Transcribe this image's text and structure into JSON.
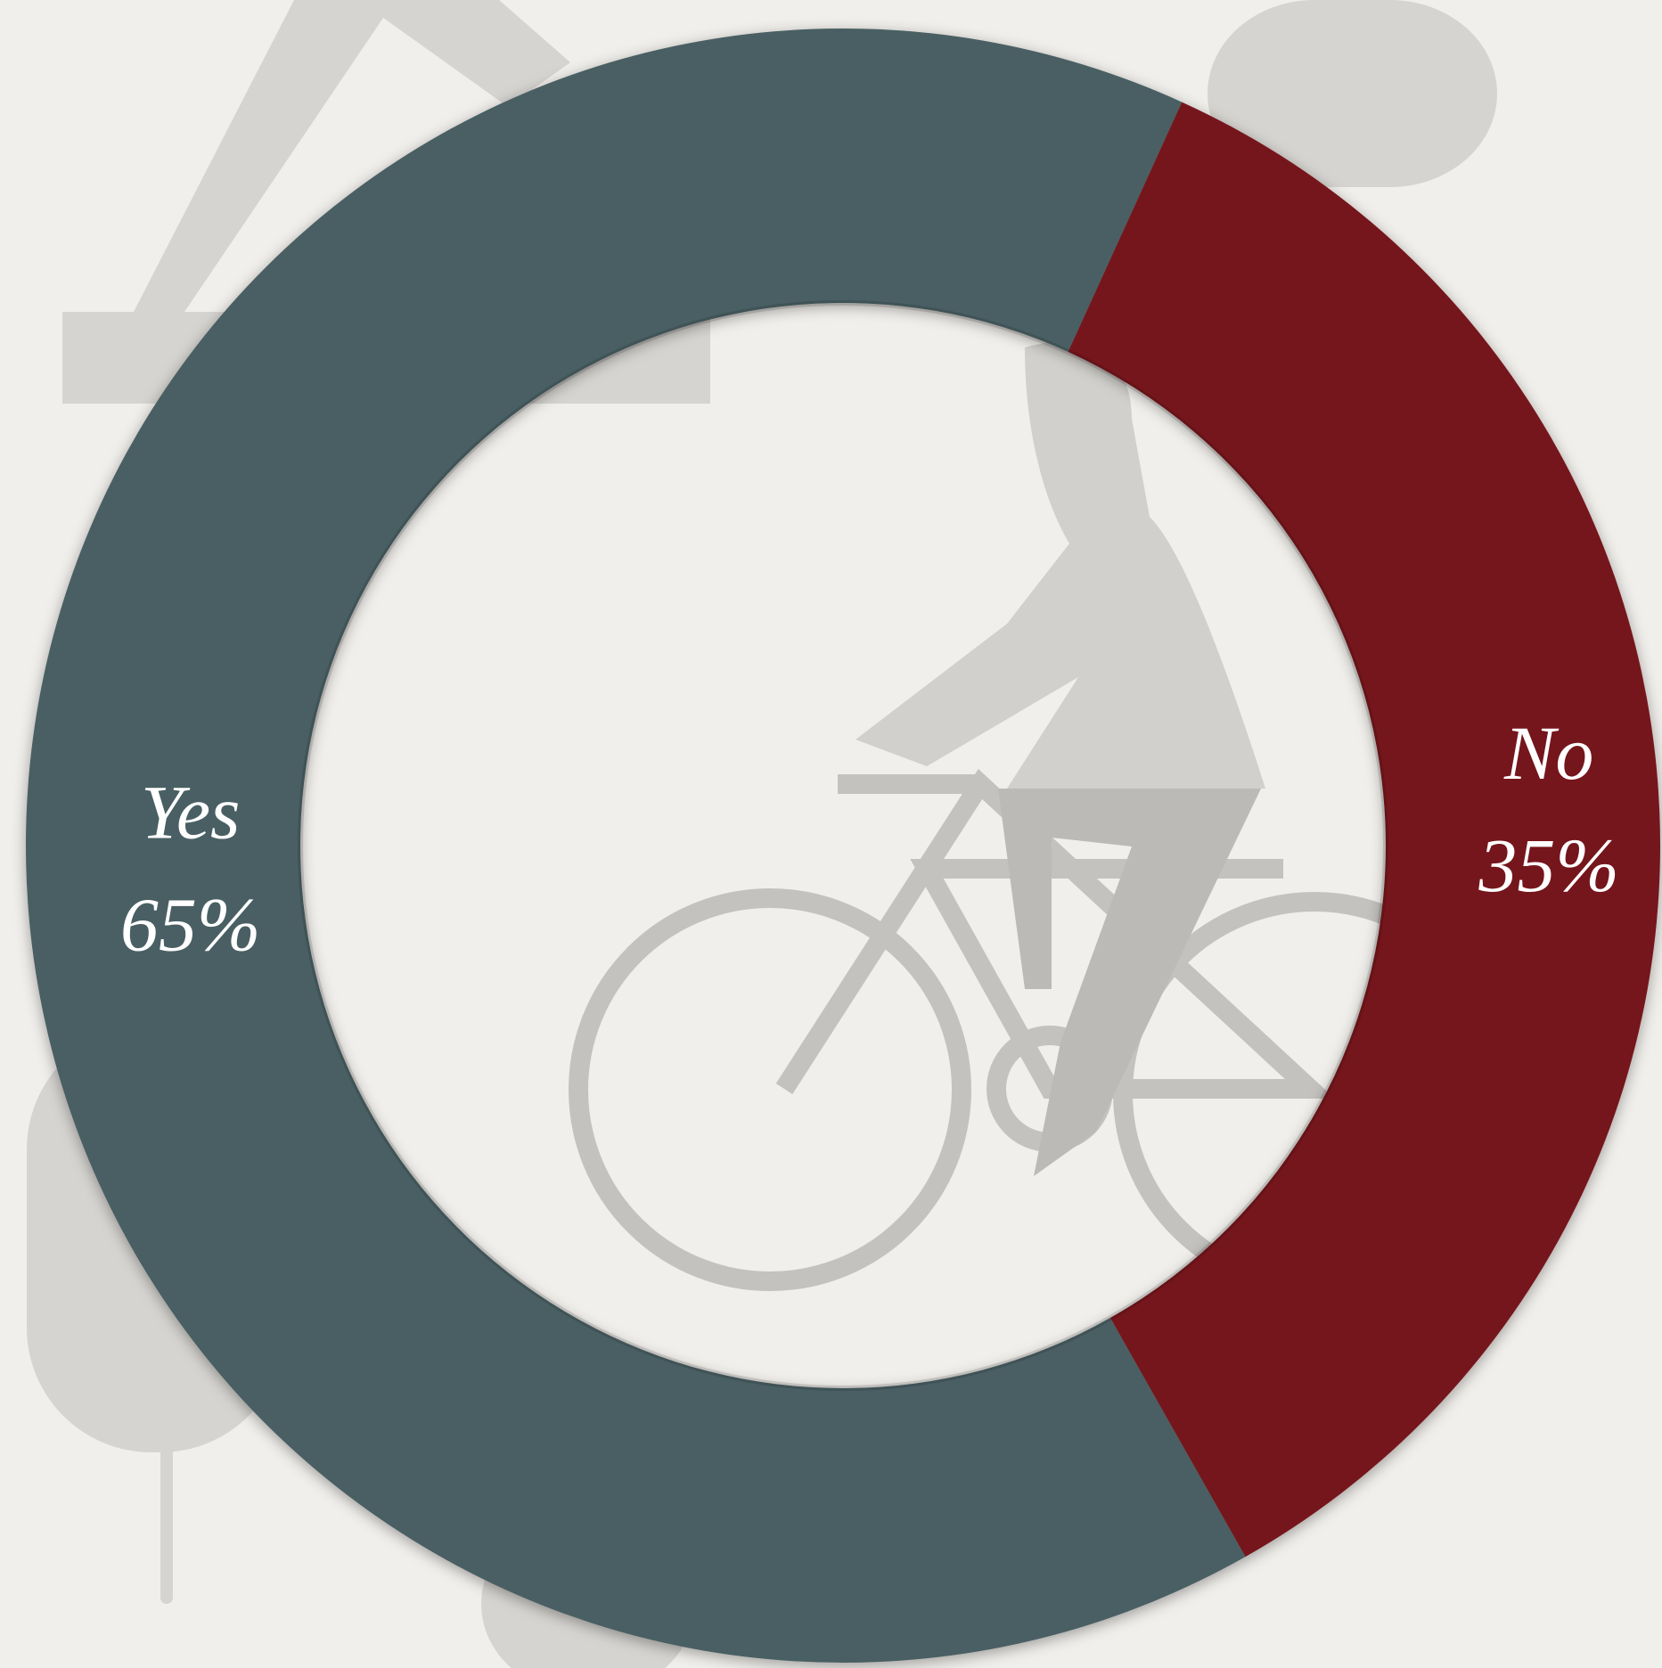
{
  "chart_data": {
    "type": "donut",
    "categories": [
      "Yes",
      "No"
    ],
    "values": [
      65,
      35
    ],
    "value_labels": [
      "65%",
      "35%"
    ],
    "colors": [
      "#4a5f63",
      "#74151a"
    ]
  }
}
